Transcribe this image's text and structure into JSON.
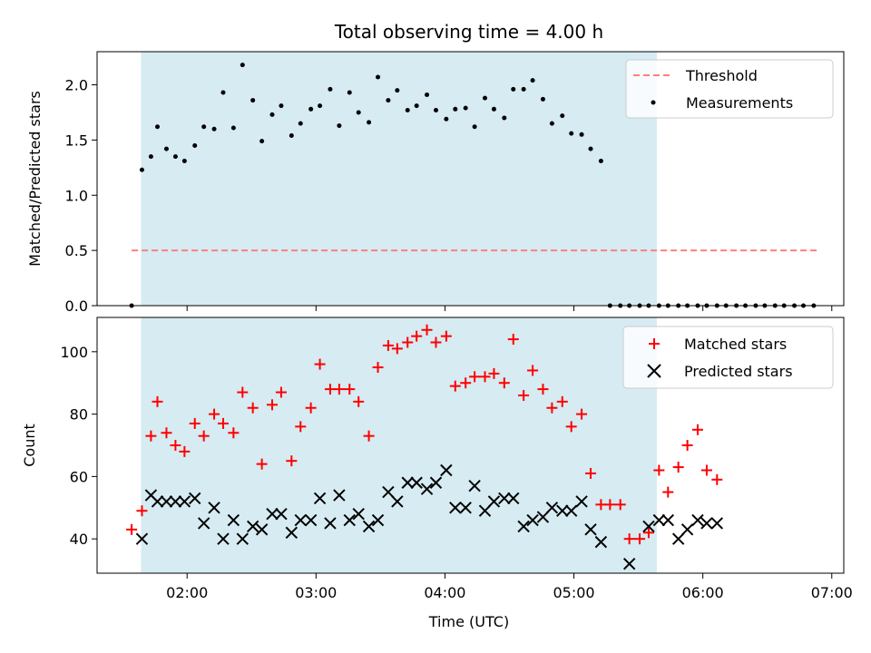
{
  "chart_data": {
    "type": "scatter",
    "title": "Total observing time = 4.00 h",
    "xlabel": "Time (UTC)",
    "x_tick_labels": [
      "02:00",
      "03:00",
      "04:00",
      "05:00",
      "06:00",
      "07:00"
    ],
    "x_ticks_hours": [
      2,
      3,
      4,
      5,
      6,
      7
    ],
    "xlim_hours": [
      1.302,
      7.093
    ],
    "shaded_span_hours": [
      1.643,
      5.643
    ],
    "shaded_color": "#add8e6",
    "top": {
      "ylabel": "Matched/Predicted stars",
      "ylim": [
        0,
        2.3
      ],
      "y_ticks": [
        0.0,
        0.5,
        1.0,
        1.5,
        2.0
      ],
      "y_tick_labels": [
        "0.0",
        "0.5",
        "1.0",
        "1.5",
        "2.0"
      ],
      "legend_position": "upper right",
      "threshold": {
        "name": "Threshold",
        "value": 0.5,
        "x_range_hours": [
          1.57,
          6.89
        ],
        "color": "#ff7f7f",
        "style": "dashed"
      },
      "measurements": {
        "name": "Measurements",
        "color": "#000000",
        "points": [
          [
            1.57,
            0.0
          ],
          [
            1.65,
            1.23
          ],
          [
            1.72,
            1.35
          ],
          [
            1.77,
            1.62
          ],
          [
            1.84,
            1.42
          ],
          [
            1.91,
            1.35
          ],
          [
            1.98,
            1.31
          ],
          [
            2.06,
            1.45
          ],
          [
            2.13,
            1.62
          ],
          [
            2.21,
            1.6
          ],
          [
            2.28,
            1.93
          ],
          [
            2.36,
            1.61
          ],
          [
            2.43,
            2.18
          ],
          [
            2.51,
            1.86
          ],
          [
            2.58,
            1.49
          ],
          [
            2.66,
            1.73
          ],
          [
            2.73,
            1.81
          ],
          [
            2.81,
            1.54
          ],
          [
            2.88,
            1.65
          ],
          [
            2.96,
            1.78
          ],
          [
            3.03,
            1.81
          ],
          [
            3.11,
            1.96
          ],
          [
            3.18,
            1.63
          ],
          [
            3.26,
            1.93
          ],
          [
            3.33,
            1.75
          ],
          [
            3.41,
            1.66
          ],
          [
            3.48,
            2.07
          ],
          [
            3.56,
            1.86
          ],
          [
            3.63,
            1.95
          ],
          [
            3.71,
            1.77
          ],
          [
            3.78,
            1.81
          ],
          [
            3.86,
            1.91
          ],
          [
            3.93,
            1.77
          ],
          [
            4.01,
            1.69
          ],
          [
            4.08,
            1.78
          ],
          [
            4.16,
            1.79
          ],
          [
            4.23,
            1.62
          ],
          [
            4.31,
            1.88
          ],
          [
            4.38,
            1.78
          ],
          [
            4.46,
            1.7
          ],
          [
            4.53,
            1.96
          ],
          [
            4.61,
            1.96
          ],
          [
            4.68,
            2.04
          ],
          [
            4.76,
            1.87
          ],
          [
            4.83,
            1.65
          ],
          [
            4.91,
            1.72
          ],
          [
            4.98,
            1.56
          ],
          [
            5.06,
            1.55
          ],
          [
            5.13,
            1.42
          ],
          [
            5.21,
            1.31
          ],
          [
            5.28,
            0.0
          ],
          [
            5.36,
            0.0
          ],
          [
            5.43,
            0.0
          ],
          [
            5.51,
            0.0
          ],
          [
            5.58,
            0.0
          ],
          [
            5.66,
            0.0
          ],
          [
            5.73,
            0.0
          ],
          [
            5.81,
            0.0
          ],
          [
            5.88,
            0.0
          ],
          [
            5.96,
            0.0
          ],
          [
            6.03,
            0.0
          ],
          [
            6.11,
            0.0
          ],
          [
            6.18,
            0.0
          ],
          [
            6.26,
            0.0
          ],
          [
            6.33,
            0.0
          ],
          [
            6.41,
            0.0
          ],
          [
            6.48,
            0.0
          ],
          [
            6.56,
            0.0
          ],
          [
            6.63,
            0.0
          ],
          [
            6.71,
            0.0
          ],
          [
            6.78,
            0.0
          ],
          [
            6.86,
            0.0
          ]
        ]
      }
    },
    "bottom": {
      "ylabel": "Count",
      "ylim": [
        29,
        111
      ],
      "y_ticks": [
        40,
        60,
        80,
        100
      ],
      "y_tick_labels": [
        "40",
        "60",
        "80",
        "100"
      ],
      "legend_position": "upper right",
      "matched": {
        "name": "Matched stars",
        "color": "#ff0000",
        "marker": "+",
        "points": [
          [
            1.57,
            43
          ],
          [
            1.65,
            49
          ],
          [
            1.72,
            73
          ],
          [
            1.77,
            84
          ],
          [
            1.84,
            74
          ],
          [
            1.91,
            70
          ],
          [
            1.98,
            68
          ],
          [
            2.06,
            77
          ],
          [
            2.13,
            73
          ],
          [
            2.21,
            80
          ],
          [
            2.28,
            77
          ],
          [
            2.36,
            74
          ],
          [
            2.43,
            87
          ],
          [
            2.51,
            82
          ],
          [
            2.58,
            64
          ],
          [
            2.66,
            83
          ],
          [
            2.73,
            87
          ],
          [
            2.81,
            65
          ],
          [
            2.88,
            76
          ],
          [
            2.96,
            82
          ],
          [
            3.03,
            96
          ],
          [
            3.11,
            88
          ],
          [
            3.18,
            88
          ],
          [
            3.26,
            88
          ],
          [
            3.33,
            84
          ],
          [
            3.41,
            73
          ],
          [
            3.48,
            95
          ],
          [
            3.56,
            102
          ],
          [
            3.63,
            101
          ],
          [
            3.71,
            103
          ],
          [
            3.78,
            105
          ],
          [
            3.86,
            107
          ],
          [
            3.93,
            103
          ],
          [
            4.01,
            105
          ],
          [
            4.08,
            89
          ],
          [
            4.16,
            90
          ],
          [
            4.23,
            92
          ],
          [
            4.31,
            92
          ],
          [
            4.38,
            93
          ],
          [
            4.46,
            90
          ],
          [
            4.53,
            104
          ],
          [
            4.61,
            86
          ],
          [
            4.68,
            94
          ],
          [
            4.76,
            88
          ],
          [
            4.83,
            82
          ],
          [
            4.91,
            84
          ],
          [
            4.98,
            76
          ],
          [
            5.06,
            80
          ],
          [
            5.13,
            61
          ],
          [
            5.21,
            51
          ],
          [
            5.28,
            51
          ],
          [
            5.36,
            51
          ],
          [
            5.43,
            40
          ],
          [
            5.51,
            40
          ],
          [
            5.58,
            42
          ],
          [
            5.66,
            62
          ],
          [
            5.73,
            55
          ],
          [
            5.81,
            63
          ],
          [
            5.88,
            70
          ],
          [
            5.96,
            75
          ],
          [
            6.03,
            62
          ],
          [
            6.11,
            59
          ]
        ]
      },
      "predicted": {
        "name": "Predicted stars",
        "color": "#000000",
        "marker": "x",
        "points": [
          [
            1.65,
            40
          ],
          [
            1.72,
            54
          ],
          [
            1.77,
            52
          ],
          [
            1.84,
            52
          ],
          [
            1.91,
            52
          ],
          [
            1.98,
            52
          ],
          [
            2.06,
            53
          ],
          [
            2.13,
            45
          ],
          [
            2.21,
            50
          ],
          [
            2.28,
            40
          ],
          [
            2.36,
            46
          ],
          [
            2.43,
            40
          ],
          [
            2.51,
            44
          ],
          [
            2.58,
            43
          ],
          [
            2.66,
            48
          ],
          [
            2.73,
            48
          ],
          [
            2.81,
            42
          ],
          [
            2.88,
            46
          ],
          [
            2.96,
            46
          ],
          [
            3.03,
            53
          ],
          [
            3.11,
            45
          ],
          [
            3.18,
            54
          ],
          [
            3.26,
            46
          ],
          [
            3.33,
            48
          ],
          [
            3.41,
            44
          ],
          [
            3.48,
            46
          ],
          [
            3.56,
            55
          ],
          [
            3.63,
            52
          ],
          [
            3.71,
            58
          ],
          [
            3.78,
            58
          ],
          [
            3.86,
            56
          ],
          [
            3.93,
            58
          ],
          [
            4.01,
            62
          ],
          [
            4.08,
            50
          ],
          [
            4.16,
            50
          ],
          [
            4.23,
            57
          ],
          [
            4.31,
            49
          ],
          [
            4.38,
            52
          ],
          [
            4.46,
            53
          ],
          [
            4.53,
            53
          ],
          [
            4.61,
            44
          ],
          [
            4.68,
            46
          ],
          [
            4.76,
            47
          ],
          [
            4.83,
            50
          ],
          [
            4.91,
            49
          ],
          [
            4.98,
            49
          ],
          [
            5.06,
            52
          ],
          [
            5.13,
            43
          ],
          [
            5.21,
            39
          ],
          [
            5.43,
            32
          ],
          [
            5.58,
            44
          ],
          [
            5.66,
            46
          ],
          [
            5.73,
            46
          ],
          [
            5.81,
            40
          ],
          [
            5.88,
            43
          ],
          [
            5.96,
            46
          ],
          [
            6.03,
            45
          ],
          [
            6.11,
            45
          ]
        ]
      }
    }
  }
}
